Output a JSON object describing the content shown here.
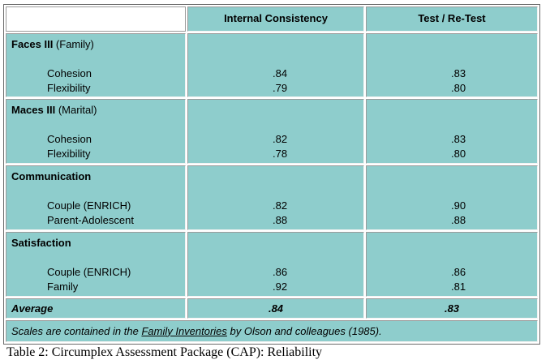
{
  "header": {
    "col1": "",
    "col2": "Internal Consistency",
    "col3": "Test / Re-Test"
  },
  "groups": [
    {
      "title_bold": "Faces III",
      "title_rest": " (Family)",
      "items": [
        "Cohesion",
        "Flexibility"
      ],
      "internal": [
        ".84",
        ".79"
      ],
      "retest": [
        ".83",
        ".80"
      ]
    },
    {
      "title_bold": "Maces III",
      "title_rest": " (Marital)",
      "items": [
        "Cohesion",
        "Flexibility"
      ],
      "internal": [
        ".82",
        ".78"
      ],
      "retest": [
        ".83",
        ".80"
      ]
    },
    {
      "title_bold": "Communication",
      "title_rest": "",
      "items": [
        "Couple (ENRICH)",
        "Parent-Adolescent"
      ],
      "internal": [
        ".82",
        ".88"
      ],
      "retest": [
        ".90",
        ".88"
      ]
    },
    {
      "title_bold": "Satisfaction",
      "title_rest": "",
      "items": [
        "Couple (ENRICH)",
        "Family"
      ],
      "internal": [
        ".86",
        ".92"
      ],
      "retest": [
        ".86",
        ".81"
      ]
    }
  ],
  "average": {
    "label": "Average",
    "internal": ".84",
    "retest": ".83"
  },
  "note": {
    "before": "Scales are contained in the ",
    "link": "Family Inventories",
    "after": " by Olson and colleagues (1985)."
  },
  "caption": "Table 2: Circumplex Assessment Package (CAP): Reliability",
  "colors": {
    "cell_background": "#8ecdcc",
    "frame": "#6a6a6a"
  }
}
